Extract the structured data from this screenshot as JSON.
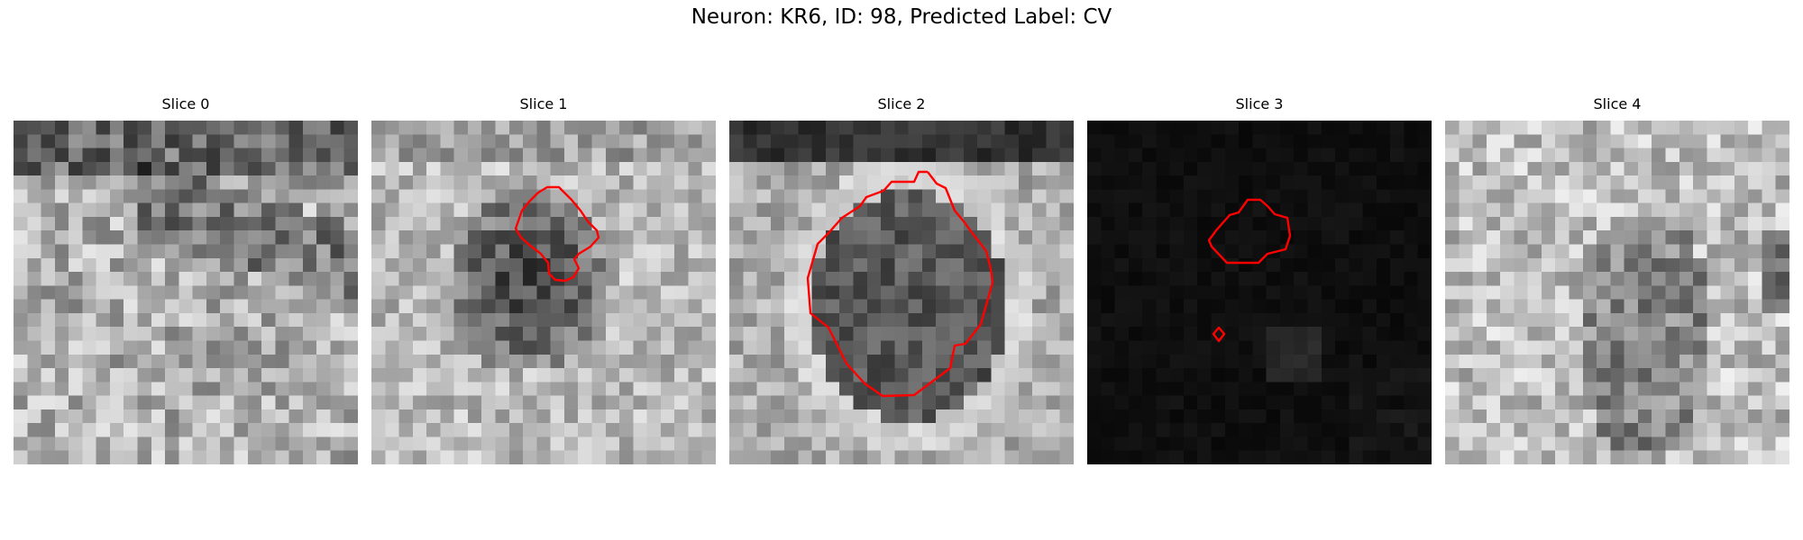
{
  "figure": {
    "suptitle": "Neuron: KR6, ID: 98, Predicted Label: CV"
  },
  "panels": [
    {
      "title": "Slice 0",
      "image": "grayscale-noisy-tissue-slice",
      "contours": 0
    },
    {
      "title": "Slice 1",
      "image": "grayscale-tissue-slice-with-dark-cell",
      "contours": 1
    },
    {
      "title": "Slice 2",
      "image": "grayscale-tissue-slice-with-round-cell",
      "contours": 1
    },
    {
      "title": "Slice 3",
      "image": "mostly-black-slice",
      "contours": 2
    },
    {
      "title": "Slice 4",
      "image": "grayscale-bright-noisy-slice",
      "contours": 0
    }
  ],
  "colors": {
    "contour": "#ff0000",
    "background": "#ffffff"
  }
}
